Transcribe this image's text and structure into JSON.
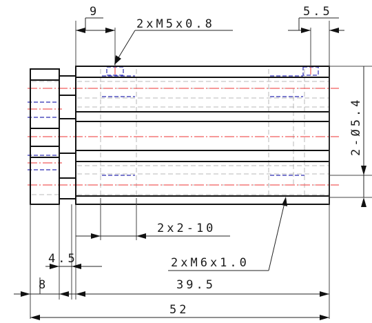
{
  "dimensions": {
    "top_left_offset": "9",
    "thread_m5": "2xM5x0.8",
    "top_right_offset": "5.5",
    "hole_dia": "2-Ø5.4",
    "counterbore": "2x2-10",
    "left_4_5": "4.5",
    "thread_m6": "2xM6x1.0",
    "left_8": "8",
    "body_length": "39.5",
    "overall_length": "52"
  }
}
